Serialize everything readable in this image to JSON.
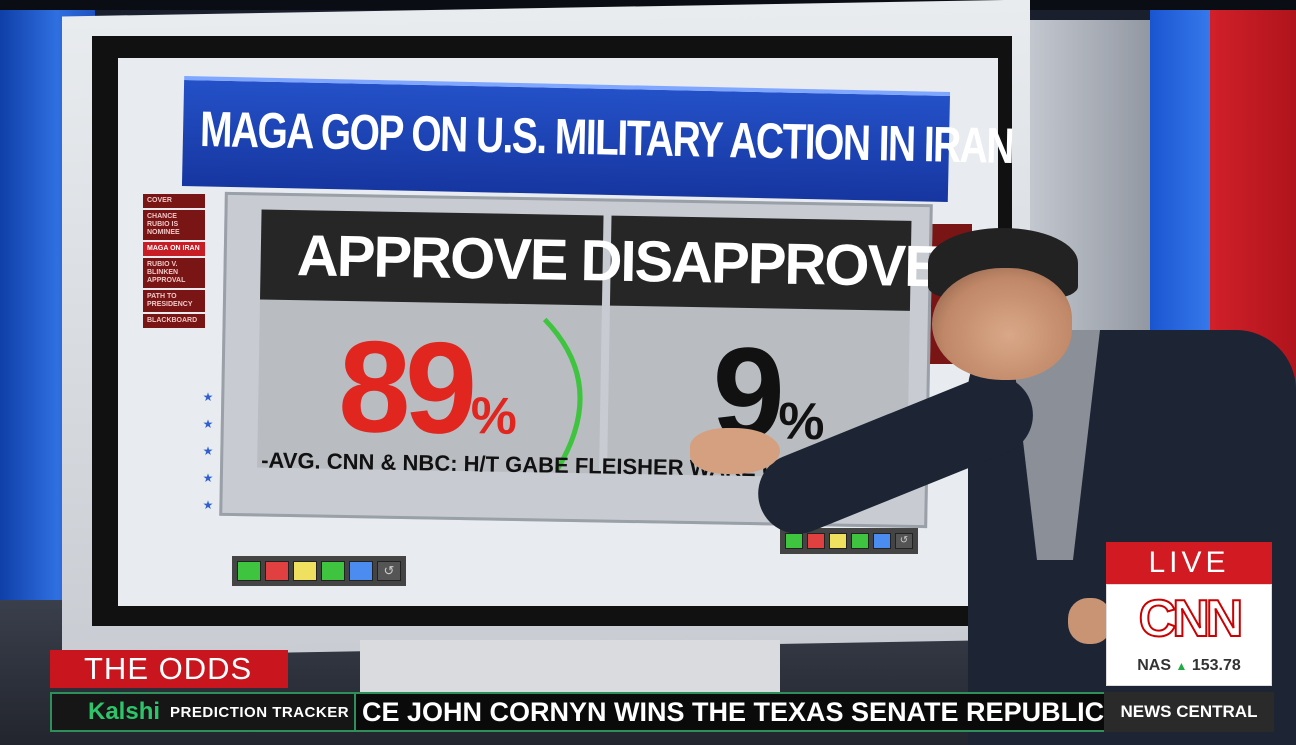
{
  "graphic": {
    "headline": "MAGA GOP ON U.S. MILITARY ACTION IN IRAN",
    "approve_label": "APPROVE",
    "approve_value": "89",
    "disapprove_label": "DISAPPROVE",
    "disapprove_value": "9",
    "percent_sign": "%",
    "source": "-AVG. CNN & NBC: H/T GABE FLEISHER WAKE UP TO POLITICS",
    "menu": [
      "COVER",
      "CHANCE RUBIO IS NOMINEE",
      "MAGA ON IRAN",
      "RUBIO V. BLINKEN APPROVAL",
      "PATH TO PRESIDENCY",
      "BLACKBOARD"
    ],
    "active_menu_index": 2,
    "approve_color": "#e0261f",
    "disapprove_color": "#111111",
    "swatch_colors": [
      "#3ec43e",
      "#e04040",
      "#f0e060",
      "#3ec43e",
      "#4a8cf0"
    ]
  },
  "lower_third": {
    "segment_tag": "THE ODDS",
    "sponsor_logo": "Kalshi",
    "sponsor_sub": "PREDICTION TRACKER",
    "crawl": "CE JOHN CORNYN WINS THE TEXAS SENATE REPUBLIC",
    "network_label": "NEWS CENTRAL"
  },
  "live_bug": {
    "live_label": "LIVE",
    "network_logo": "CNN",
    "stock_ticker": "NAS",
    "stock_direction_icon": "up-triangle-icon",
    "stock_value": "153.78"
  },
  "colors": {
    "cnn_red": "#cc0000",
    "headline_blue": "#1f45b8",
    "kalshi_green": "#2fc46a"
  }
}
